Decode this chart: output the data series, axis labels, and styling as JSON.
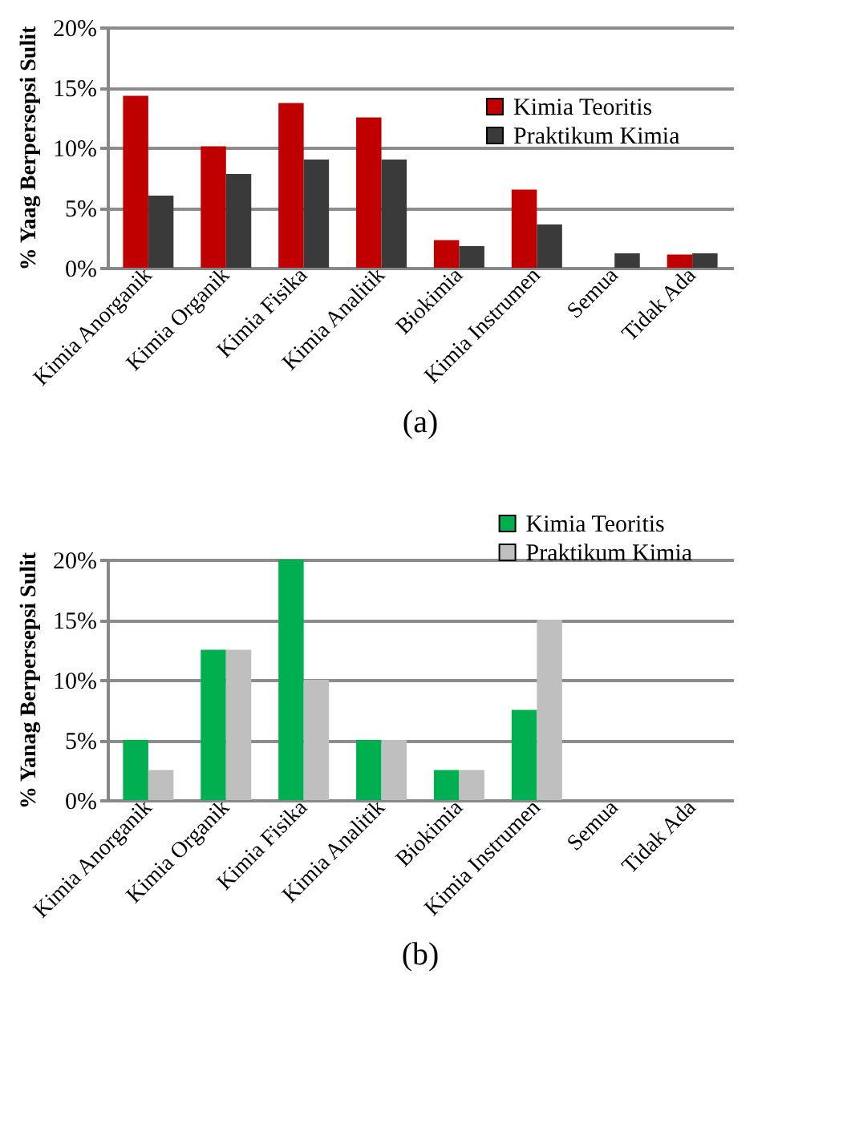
{
  "chart_data": [
    {
      "type": "bar",
      "title": "(a)",
      "ylabel": "% Yaag Berpersepsi Sulit",
      "categories": [
        "Kimia Anorganik",
        "Kimia Organik",
        "Kimia Fisika",
        "Kimia Analitik",
        "Biokimia",
        "Kimia Instrumen",
        "Semua",
        "Tidak Ada"
      ],
      "series": [
        {
          "name": "Kimia Teoritis",
          "color": "#c00000",
          "values": [
            14.3,
            10.1,
            13.7,
            12.5,
            2.3,
            6.5,
            0,
            1.1
          ]
        },
        {
          "name": "Praktikum Kimia",
          "color": "#3a3a3a",
          "values": [
            6.0,
            7.8,
            9.0,
            9.0,
            1.8,
            3.6,
            1.2,
            1.2
          ]
        }
      ],
      "ylim": [
        0,
        20
      ],
      "yticks": [
        {
          "value": 0,
          "label": "0%"
        },
        {
          "value": 5,
          "label": "5%"
        },
        {
          "value": 10,
          "label": "10%"
        },
        {
          "value": 15,
          "label": "15%"
        },
        {
          "value": 20,
          "label": "20%"
        }
      ],
      "grid": "y",
      "legend": "right"
    },
    {
      "type": "bar",
      "title": "(b)",
      "ylabel": "% Yanag Berpersepsi  Sulit",
      "categories": [
        "Kimia Anorganik",
        "Kimia Organik",
        "Kimia Fisika",
        "Kimia Analitik",
        "Biokimia",
        "Kimia Instrumen",
        "Semua",
        "Tidak Ada"
      ],
      "series": [
        {
          "name": "Kimia Teoritis",
          "color": "#00b050",
          "values": [
            5.0,
            12.5,
            20.0,
            5.0,
            2.5,
            7.5,
            0,
            0
          ]
        },
        {
          "name": "Praktikum Kimia",
          "color": "#bfbfbf",
          "values": [
            2.5,
            12.5,
            10.0,
            5.0,
            2.5,
            15.0,
            0,
            0
          ]
        }
      ],
      "ylim": [
        0,
        20
      ],
      "yticks": [
        {
          "value": 0,
          "label": "0%"
        },
        {
          "value": 5,
          "label": "5%"
        },
        {
          "value": 10,
          "label": "10%"
        },
        {
          "value": 15,
          "label": "15%"
        },
        {
          "value": 20,
          "label": "20%"
        }
      ],
      "grid": "y",
      "legend": "top right"
    }
  ]
}
